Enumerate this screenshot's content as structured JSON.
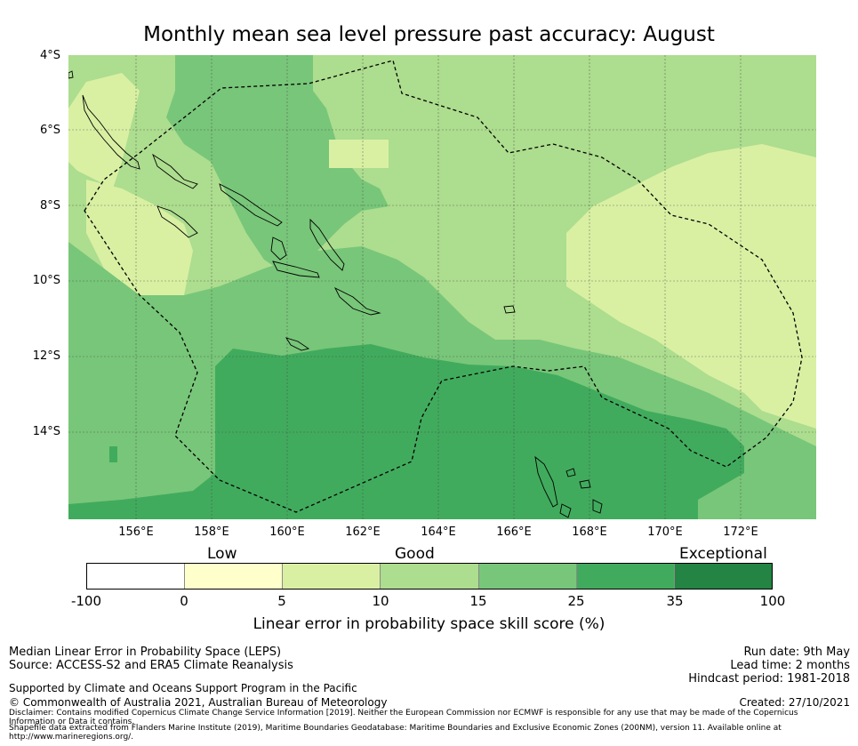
{
  "title": "Monthly mean sea level pressure past accuracy: August",
  "lat_labels": [
    "4°S",
    "6°S",
    "8°S",
    "10°S",
    "12°S",
    "14°S"
  ],
  "lon_labels": [
    "156°E",
    "158°E",
    "160°E",
    "162°E",
    "164°E",
    "166°E",
    "168°E",
    "170°E",
    "172°E"
  ],
  "skill_categories": [
    "Low",
    "Good",
    "Exceptional"
  ],
  "colorbar": {
    "ticks": [
      "-100",
      "0",
      "5",
      "10",
      "15",
      "25",
      "35",
      "100"
    ],
    "colors": [
      "#ffffff",
      "#ffffcc",
      "#d9f0a3",
      "#addd8e",
      "#78c679",
      "#41ab5d",
      "#238443"
    ],
    "label": "Linear error in probability space skill score (%)"
  },
  "colors": {
    "skill_10_15": "#addd8e",
    "skill_15_25": "#78c679",
    "skill_25_35": "#41ab5d",
    "skill_5_10": "#d9f0a3"
  },
  "footer": {
    "method": "Median Linear Error in Probability Space (LEPS)",
    "source": "Source: ACCESS-S2 and ERA5 Climate Reanalysis",
    "support": "Supported by Climate and Oceans Support Program in the Pacific",
    "copyright": "© Commonwealth of Australia 2021, Australian Bureau of Meteorology",
    "disclaimer": "Disclaimer: Contains modified Copernicus Climate Change Service Information [2019]. Neither the European Commission nor ECMWF is responsible for any use that may be made of the Copernicus Information or Data it contains.",
    "shapefile": "Shapefile data extracted from Flanders Marine Institute (2019), Maritime Boundaries Geodatabase: Maritime Boundaries and Exclusive Economic Zones (200NM), version 11. Available online at http://www.marineregions.org/.",
    "run_date": "Run date: 9th May",
    "lead_time": "Lead time: 2 months",
    "hindcast": "Hindcast period: 1981-2018",
    "created": "Created: 27/10/2021"
  }
}
